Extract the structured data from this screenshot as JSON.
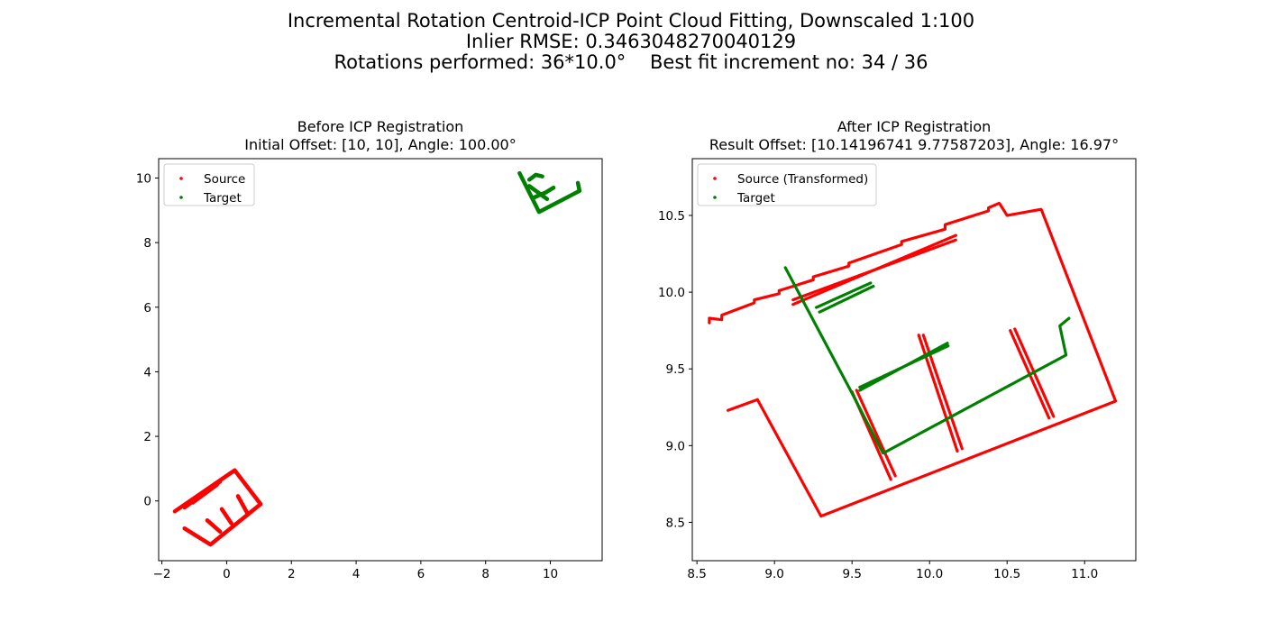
{
  "suptitle": {
    "line1": "Incremental Rotation Centroid-ICP Point Cloud Fitting, Downscaled 1:100",
    "line2": "Inlier RMSE: 0.3463048270040129",
    "line3": "Rotations performed: 36*10.0°    Best fit increment no: 34 / 36"
  },
  "colors": {
    "source": "#ff0000",
    "target": "#008000"
  },
  "chart_data": [
    {
      "type": "scatter",
      "title": "Before ICP Registration",
      "subtitle": "Initial Offset: [10, 10], Angle: 100.00°",
      "xlim": [
        -2.1,
        11.6
      ],
      "ylim": [
        -1.85,
        10.6
      ],
      "xticks": [
        -2,
        0,
        2,
        4,
        6,
        8,
        10
      ],
      "yticks": [
        0,
        2,
        4,
        6,
        8,
        10
      ],
      "legend_position": "top-left",
      "series": [
        {
          "name": "Source",
          "color": "#ff0000",
          "paths": [
            [
              [
                -1.6,
                -0.32
              ],
              [
                0.25,
                0.95
              ],
              [
                1.05,
                -0.1
              ],
              [
                -0.5,
                -1.35
              ],
              [
                -1.3,
                -0.85
              ]
            ],
            [
              [
                -1.3,
                -0.2
              ],
              [
                -0.2,
                0.6
              ]
            ],
            [
              [
                -1.05,
                -0.05
              ],
              [
                -0.3,
                0.5
              ]
            ],
            [
              [
                -0.6,
                -0.6
              ],
              [
                -0.2,
                -0.95
              ]
            ],
            [
              [
                -0.15,
                -0.25
              ],
              [
                0.15,
                -0.7
              ]
            ],
            [
              [
                0.35,
                0.15
              ],
              [
                0.65,
                -0.4
              ]
            ]
          ]
        },
        {
          "name": "Target",
          "color": "#008000",
          "paths": [
            [
              [
                9.05,
                10.15
              ],
              [
                9.65,
                8.95
              ],
              [
                10.9,
                9.6
              ],
              [
                10.85,
                9.85
              ]
            ],
            [
              [
                9.35,
                9.95
              ],
              [
                9.55,
                10.1
              ],
              [
                9.75,
                10.05
              ]
            ],
            [
              [
                9.5,
                9.4
              ],
              [
                9.85,
                9.55
              ],
              [
                10.1,
                9.7
              ]
            ],
            [
              [
                9.35,
                9.75
              ],
              [
                9.9,
                9.35
              ]
            ]
          ]
        }
      ]
    },
    {
      "type": "scatter",
      "title": "After ICP Registration",
      "subtitle": "Result Offset: [10.14196741  9.77587203], Angle: 16.97°",
      "xlim": [
        8.47,
        11.33
      ],
      "ylim": [
        8.25,
        10.87
      ],
      "xticks": [
        8.5,
        9.0,
        9.5,
        10.0,
        10.5,
        11.0
      ],
      "yticks": [
        8.5,
        9.0,
        9.5,
        10.0,
        10.5
      ],
      "legend_position": "top-left",
      "series": [
        {
          "name": "Source (Transformed)",
          "color": "#ff0000",
          "paths": [
            [
              [
                8.58,
                9.8
              ],
              [
                8.58,
                9.83
              ],
              [
                8.66,
                9.82
              ],
              [
                8.66,
                9.85
              ],
              [
                8.87,
                9.93
              ],
              [
                8.87,
                9.95
              ],
              [
                9.03,
                9.99
              ],
              [
                9.03,
                10.01
              ],
              [
                9.25,
                10.08
              ],
              [
                9.25,
                10.1
              ],
              [
                9.48,
                10.17
              ],
              [
                9.48,
                10.19
              ],
              [
                9.82,
                10.31
              ],
              [
                9.82,
                10.33
              ],
              [
                10.1,
                10.41
              ],
              [
                10.1,
                10.44
              ],
              [
                10.38,
                10.53
              ],
              [
                10.38,
                10.55
              ],
              [
                10.45,
                10.58
              ],
              [
                10.5,
                10.5
              ],
              [
                10.72,
                10.54
              ],
              [
                11.2,
                9.29
              ],
              [
                9.3,
                8.54
              ],
              [
                8.89,
                9.3
              ],
              [
                8.7,
                9.23
              ]
            ],
            [
              [
                9.12,
                9.92
              ],
              [
                10.17,
                10.37
              ]
            ],
            [
              [
                9.12,
                9.95
              ],
              [
                10.17,
                10.34
              ]
            ],
            [
              [
                9.5,
                9.35
              ],
              [
                9.75,
                8.78
              ]
            ],
            [
              [
                9.53,
                9.36
              ],
              [
                9.78,
                8.8
              ]
            ],
            [
              [
                9.93,
                9.72
              ],
              [
                10.18,
                8.96
              ]
            ],
            [
              [
                9.96,
                9.72
              ],
              [
                10.21,
                8.98
              ]
            ],
            [
              [
                10.52,
                9.75
              ],
              [
                10.77,
                9.18
              ]
            ],
            [
              [
                10.55,
                9.76
              ],
              [
                10.8,
                9.19
              ]
            ]
          ]
        },
        {
          "name": "Target",
          "color": "#008000",
          "paths": [
            [
              [
                9.07,
                10.16
              ],
              [
                9.49,
                9.36
              ],
              [
                9.7,
                8.95
              ],
              [
                10.88,
                9.59
              ],
              [
                10.84,
                9.78
              ],
              [
                10.9,
                9.83
              ]
            ],
            [
              [
                9.55,
                9.36
              ],
              [
                10.12,
                9.67
              ]
            ],
            [
              [
                9.55,
                9.38
              ],
              [
                10.12,
                9.65
              ]
            ],
            [
              [
                9.27,
                9.9
              ],
              [
                9.62,
                10.06
              ]
            ],
            [
              [
                9.29,
                9.87
              ],
              [
                9.64,
                10.04
              ]
            ]
          ]
        }
      ]
    }
  ]
}
